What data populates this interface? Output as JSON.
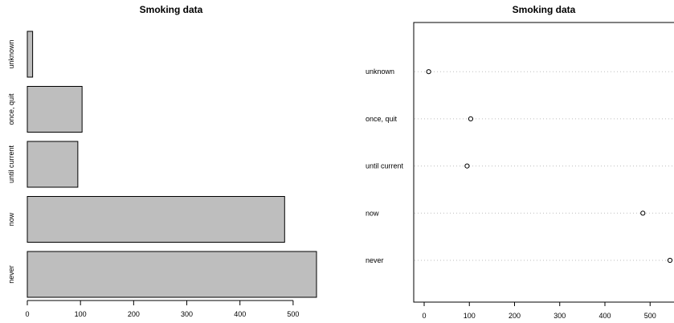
{
  "chart_data": [
    {
      "type": "bar",
      "orientation": "horizontal",
      "title": "Smoking data",
      "categories": [
        "never",
        "now",
        "until current",
        "once, quit",
        "unknown"
      ],
      "values": [
        544,
        484,
        95,
        103,
        10
      ],
      "xticks": [
        "0",
        "100",
        "200",
        "300",
        "400",
        "500"
      ],
      "xlim": [
        0,
        544
      ],
      "bar_color": "#bebebe"
    },
    {
      "type": "scatter",
      "subtype": "dotchart",
      "title": "Smoking data",
      "categories": [
        "never",
        "now",
        "until current",
        "once, quit",
        "unknown"
      ],
      "values": [
        544,
        484,
        95,
        103,
        10
      ],
      "xticks": [
        "0",
        "100",
        "200",
        "300",
        "400",
        "500"
      ],
      "xlim": [
        0,
        544
      ],
      "grid": "dotted horizontal lines"
    }
  ]
}
